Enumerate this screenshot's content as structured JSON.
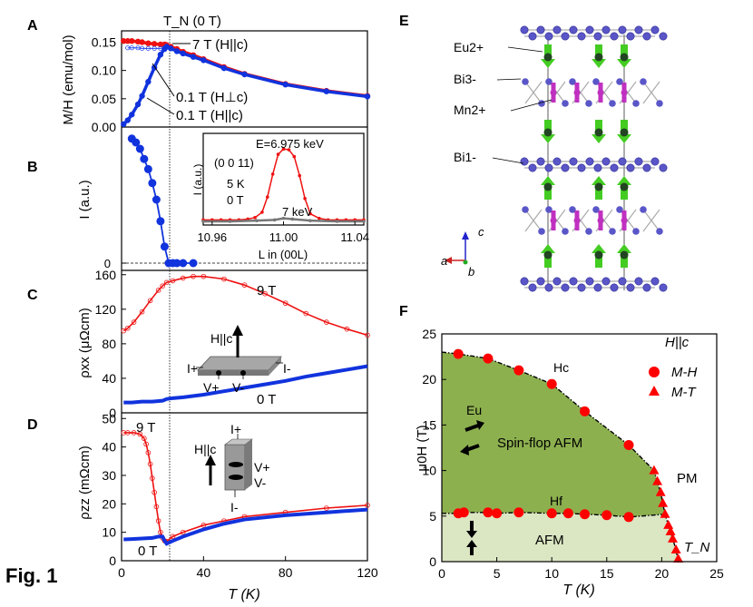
{
  "figure_label": "Fig. 1",
  "panel_labels": {
    "a": "A",
    "b": "B",
    "c": "C",
    "d": "D",
    "e": "E",
    "f": "F"
  },
  "chart_data": [
    {
      "id": "A",
      "type": "scatter",
      "ylabel": "M/H (emu/mol)",
      "xlim": [
        0,
        120
      ],
      "ylim": [
        0,
        0.17
      ],
      "yticks": [
        "0.00",
        "0.05",
        "0.10",
        "0.15"
      ],
      "top_label": "T_N (0 T)",
      "annotations": [
        "7 T (H||c)",
        "0.1 T (H⊥c)",
        "0.1 T (H||c)"
      ],
      "series": [
        {
          "name": "7 T (H||c)",
          "x": [
            1,
            3,
            5,
            8,
            10,
            13,
            16,
            19,
            21,
            22,
            24,
            27,
            30,
            35,
            40,
            50,
            60,
            80,
            100,
            120
          ],
          "y": [
            0.152,
            0.152,
            0.152,
            0.151,
            0.15,
            0.148,
            0.147,
            0.146,
            0.146,
            0.145,
            0.142,
            0.138,
            0.133,
            0.127,
            0.12,
            0.106,
            0.094,
            0.076,
            0.064,
            0.055
          ]
        },
        {
          "name": "0.1 T (H⊥c)",
          "x": [
            3,
            5,
            8,
            10,
            13,
            16,
            19,
            21,
            22,
            24,
            27,
            30,
            35,
            40,
            50,
            60,
            80,
            100,
            120
          ],
          "y": [
            0.14,
            0.14,
            0.14,
            0.139,
            0.139,
            0.139,
            0.139,
            0.14,
            0.141,
            0.139,
            0.135,
            0.131,
            0.125,
            0.119,
            0.105,
            0.094,
            0.076,
            0.064,
            0.055
          ]
        },
        {
          "name": "0.1 T (H||c)",
          "x": [
            1,
            3,
            5,
            8,
            10,
            13,
            16,
            19,
            21,
            22,
            24,
            27,
            30,
            35,
            40,
            50,
            60,
            80,
            100,
            120
          ],
          "y": [
            0.005,
            0.012,
            0.022,
            0.04,
            0.055,
            0.08,
            0.105,
            0.128,
            0.138,
            0.142,
            0.139,
            0.134,
            0.13,
            0.124,
            0.118,
            0.104,
            0.093,
            0.075,
            0.063,
            0.054
          ]
        }
      ]
    },
    {
      "id": "B",
      "type": "scatter",
      "ylabel": "I (a.u.)",
      "xlim": [
        0,
        120
      ],
      "ytick": "0",
      "x": [
        5,
        7,
        9,
        11,
        13,
        15,
        17,
        19,
        21,
        23,
        25,
        27,
        30,
        35
      ],
      "y": [
        0.98,
        0.95,
        0.9,
        0.82,
        0.74,
        0.63,
        0.5,
        0.33,
        0.13,
        0.0,
        0.0,
        0.0,
        0.0,
        0.0
      ],
      "inset": {
        "type": "line",
        "title": "E=6.975 keV",
        "reflection": "(0 0 11)",
        "temperature": "5 K",
        "field": "0 T",
        "second_energy": "7 keV",
        "ylabel": "I (a.u.)",
        "xlabel": "L in (00L)",
        "xlim": [
          10.955,
          11.045
        ],
        "xticks": [
          "10.96",
          "11.00",
          "11.04"
        ],
        "series": [
          {
            "name": "6.975 keV",
            "x": [
              10.955,
              10.96,
              10.965,
              10.97,
              10.975,
              10.98,
              10.984,
              10.988,
              10.991,
              10.994,
              10.997,
              11.0,
              11.003,
              11.006,
              11.009,
              11.012,
              11.015,
              11.02,
              11.025,
              11.03,
              11.035,
              11.04,
              11.045
            ],
            "y": [
              0.02,
              0.02,
              0.02,
              0.02,
              0.02,
              0.03,
              0.05,
              0.12,
              0.32,
              0.62,
              0.88,
              0.95,
              0.94,
              0.85,
              0.6,
              0.3,
              0.1,
              0.04,
              0.02,
              0.02,
              0.02,
              0.02,
              0.02
            ]
          },
          {
            "name": "7 keV",
            "x": [
              10.955,
              10.97,
              10.985,
              10.995,
              11.0,
              11.005,
              11.015,
              11.03,
              11.045
            ],
            "y": [
              0.0,
              0.0,
              0.01,
              0.02,
              0.04,
              0.03,
              0.01,
              0.0,
              0.0
            ]
          }
        ]
      }
    },
    {
      "id": "C",
      "type": "line",
      "ylabel": "ρxx (μΩcm)",
      "xlim": [
        0,
        120
      ],
      "ylim": [
        0,
        165
      ],
      "yticks": [
        "0",
        "40",
        "80",
        "120",
        "160"
      ],
      "labels": {
        "high": "9 T",
        "zero": "0 T"
      },
      "inset": {
        "field": "H||c",
        "i_plus": "I+",
        "i_minus": "I-",
        "v_plus": "V+",
        "v_minus": "V-"
      },
      "series": [
        {
          "name": "9 T",
          "x": [
            1,
            3,
            6,
            10,
            14,
            18,
            20,
            22,
            25,
            30,
            35,
            40,
            50,
            60,
            70,
            80,
            90,
            100,
            110,
            120
          ],
          "y": [
            95,
            98,
            105,
            117,
            130,
            142,
            147,
            151,
            153,
            156,
            158,
            158,
            155,
            148,
            138,
            127,
            115,
            105,
            97,
            90
          ]
        },
        {
          "name": "0 T",
          "x": [
            1,
            5,
            10,
            15,
            20,
            21,
            22,
            25,
            30,
            40,
            50,
            60,
            70,
            80,
            90,
            100,
            110,
            120
          ],
          "y": [
            12,
            12,
            13,
            13,
            14,
            15,
            16,
            17,
            18,
            21,
            25,
            29,
            33,
            37,
            42,
            46,
            50,
            54
          ]
        }
      ]
    },
    {
      "id": "D",
      "type": "line",
      "ylabel": "ρzz (mΩcm)",
      "xlabel": "T (K)",
      "xlim": [
        0,
        120
      ],
      "ylim": [
        0,
        52
      ],
      "xticks": [
        "0",
        "40",
        "80",
        "120"
      ],
      "yticks": [
        "0",
        "10",
        "20",
        "30",
        "40",
        "50"
      ],
      "labels": {
        "high": "9 T",
        "zero": "0 T"
      },
      "inset": {
        "field": "H||c",
        "i_plus": "I+",
        "i_minus": "I-",
        "v_plus": "V+",
        "v_minus": "V-"
      },
      "series": [
        {
          "name": "9 T",
          "x": [
            1,
            3,
            6,
            9,
            11,
            12,
            13,
            14,
            15,
            16,
            17,
            18,
            19,
            20,
            21,
            22,
            25,
            30,
            40,
            50,
            60,
            80,
            100,
            120
          ],
          "y": [
            45,
            45,
            45,
            44.5,
            43,
            41,
            38,
            34,
            29,
            24,
            19,
            14,
            10,
            8,
            7,
            6.8,
            8.5,
            10,
            12.5,
            14,
            15.5,
            17,
            18.5,
            19.5
          ]
        },
        {
          "name": "0 T",
          "x": [
            1,
            5,
            10,
            15,
            18,
            20,
            21,
            22,
            25,
            30,
            40,
            50,
            60,
            80,
            100,
            120
          ],
          "y": [
            7.5,
            7.6,
            7.8,
            8,
            8.5,
            8.5,
            7,
            6,
            7,
            8.5,
            11,
            13,
            14.5,
            16,
            17,
            18
          ]
        }
      ]
    },
    {
      "id": "F",
      "type": "scatter",
      "xlabel": "T (K)",
      "ylabel": "μ0H (T)",
      "xlim": [
        0,
        25
      ],
      "ylim": [
        0,
        25
      ],
      "xticks": [
        "0",
        "5",
        "10",
        "15",
        "20",
        "25"
      ],
      "yticks": [
        "0",
        "5",
        "10",
        "15",
        "20",
        "25"
      ],
      "legend": {
        "title": "H||c",
        "items": [
          "M-H",
          "M-T"
        ]
      },
      "region_labels": {
        "spinflop": "Spin-flop AFM",
        "afm": "AFM",
        "pm": "PM",
        "eu": "Eu",
        "hc": "Hc",
        "hf": "Hf",
        "tn": "T_N"
      },
      "colors": {
        "spinflop": "#8db04f",
        "afm": "#dbe6c3",
        "marker": "#ff0000"
      },
      "series": [
        {
          "name": "M-H upper",
          "x": [
            1.5,
            4.2,
            7,
            10,
            13,
            17
          ],
          "y": [
            22.8,
            22.3,
            21,
            19.5,
            16.5,
            12.8
          ]
        },
        {
          "name": "M-H lower",
          "x": [
            1.5,
            2,
            4.2,
            5,
            7,
            10,
            11.5,
            13,
            15,
            17
          ],
          "y": [
            5.3,
            5.4,
            5.4,
            5.3,
            5.4,
            5.3,
            5.3,
            5.2,
            5.1,
            4.9
          ]
        },
        {
          "name": "M-T",
          "x": [
            19.3,
            19.6,
            19.9,
            20.1,
            20.3,
            20.6,
            20.8,
            21.0,
            21.3,
            21.5
          ],
          "y": [
            10,
            8.8,
            7.6,
            6.4,
            5.2,
            4,
            3.3,
            2.5,
            1.3,
            0.3
          ]
        }
      ]
    }
  ],
  "structure": {
    "labels": [
      "Eu2+",
      "Bi3-",
      "Mn2+",
      "Bi1-"
    ],
    "axes": [
      "a",
      "b",
      "c"
    ]
  }
}
